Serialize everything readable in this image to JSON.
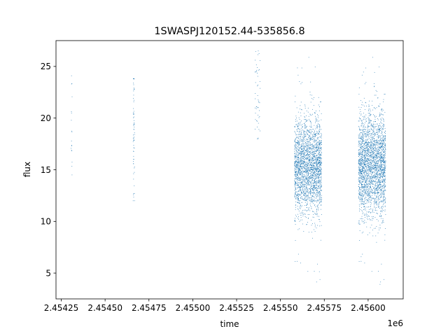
{
  "chart_data": {
    "type": "scatter",
    "title": "1SWASPJ120152.44-535856.8",
    "xlabel": "time",
    "ylabel": "flux",
    "x_offset_label": "1e6",
    "xlim": [
      2454220.0,
      2456200.0
    ],
    "ylim": [
      2.5,
      27.5
    ],
    "x_ticks": [
      2454250.0,
      2454500.0,
      2454750.0,
      2455000.0,
      2455250.0,
      2455500.0,
      2455750.0,
      2456000.0
    ],
    "x_tick_labels": [
      "2.45425",
      "2.45450",
      "2.45475",
      "2.45500",
      "2.45525",
      "2.45550",
      "2.45575",
      "2.45600"
    ],
    "y_ticks": [
      5,
      10,
      15,
      20,
      25
    ],
    "y_tick_labels": [
      "5",
      "10",
      "15",
      "20",
      "25"
    ],
    "grid": false,
    "marker_color": "#1f77b4",
    "series": [
      {
        "clusters": [
          {
            "x_range": [
              2454306.0,
              2454312.0
            ],
            "y_center": 19.0,
            "y_spread": 3.0,
            "y_range": [
              14.5,
              25.8
            ],
            "count": 18
          },
          {
            "x_range": [
              2454660.0,
              2454668.0
            ],
            "y_center": 19.0,
            "y_spread": 4.0,
            "y_range": [
              12.0,
              23.8
            ],
            "count": 70
          },
          {
            "x_range": [
              2455355.0,
              2455385.0
            ],
            "y_center": 22.0,
            "y_spread": 2.3,
            "y_range": [
              18.0,
              26.5
            ],
            "count": 50
          },
          {
            "x_range": [
              2455580.0,
              2455735.0
            ],
            "y_center": 15.3,
            "y_spread": 2.3,
            "y_range": [
              3.5,
              26.5
            ],
            "count": 2400
          },
          {
            "x_range": [
              2455945.0,
              2456100.0
            ],
            "y_center": 15.5,
            "y_spread": 2.5,
            "y_range": [
              3.5,
              26.5
            ],
            "count": 2600
          }
        ]
      }
    ]
  }
}
